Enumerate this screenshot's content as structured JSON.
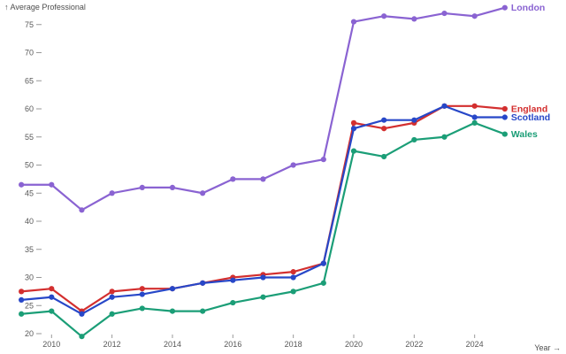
{
  "chart": {
    "title": "↑ Average Professional",
    "x_axis_title": "Year →",
    "text_color": "#4d4d4d",
    "tick_color": "#999999"
  },
  "chart_data": {
    "type": "line",
    "title": "Average Professional",
    "xlabel": "Year",
    "ylabel": "Average Professional",
    "grid": false,
    "legend_position": "line-end-labels",
    "xlim": [
      2009,
      2025
    ],
    "ylim": [
      17,
      80
    ],
    "xticks": [
      2010,
      2012,
      2014,
      2016,
      2018,
      2020,
      2022,
      2024
    ],
    "yticks": [
      20,
      25,
      30,
      35,
      40,
      45,
      50,
      55,
      60,
      65,
      70,
      75
    ],
    "x": [
      2009,
      2010,
      2011,
      2012,
      2013,
      2014,
      2015,
      2016,
      2017,
      2018,
      2019,
      2020,
      2021,
      2022,
      2023,
      2024,
      2025
    ],
    "series": [
      {
        "name": "London",
        "color": "#8a63d2",
        "values": [
          46.5,
          46.5,
          42,
          45,
          46,
          46,
          45,
          47.5,
          47.5,
          50,
          51,
          75.5,
          76.5,
          76,
          77,
          76.5,
          78
        ]
      },
      {
        "name": "England",
        "color": "#d32f2f",
        "values": [
          27.5,
          28,
          24,
          27.5,
          28,
          28,
          29,
          30,
          30.5,
          31,
          32.5,
          57.5,
          56.5,
          57.5,
          60.5,
          60.5,
          60
        ]
      },
      {
        "name": "Scotland",
        "color": "#2747c8",
        "values": [
          26,
          26.5,
          23.5,
          26.5,
          27,
          28,
          29,
          29.5,
          30,
          30,
          32.5,
          56.5,
          58,
          58,
          60.5,
          58.5,
          58.5
        ]
      },
      {
        "name": "Wales",
        "color": "#1b9e77",
        "values": [
          23.5,
          24,
          19.5,
          23.5,
          24.5,
          24,
          24,
          25.5,
          26.5,
          27.5,
          29,
          52.5,
          51.5,
          54.5,
          55,
          57.5,
          55.5
        ]
      }
    ]
  }
}
